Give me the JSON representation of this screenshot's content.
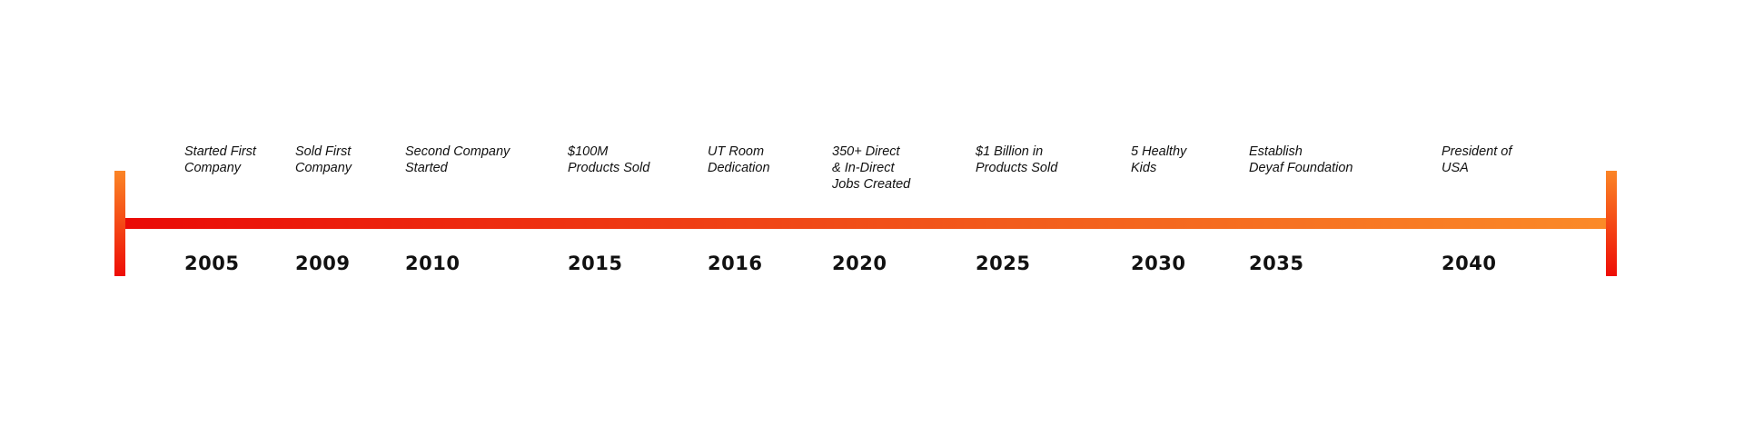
{
  "timeline": {
    "events": [
      {
        "year": "2005",
        "description": "Started First\nCompany"
      },
      {
        "year": "2009",
        "description": "Sold First\nCompany"
      },
      {
        "year": "2010",
        "description": "Second Company\nStarted"
      },
      {
        "year": "2015",
        "description": "$100M\nProducts Sold"
      },
      {
        "year": "2016",
        "description": "UT Room\nDedication"
      },
      {
        "year": "2020",
        "description": "350+ Direct\n& In-Direct\nJobs Created"
      },
      {
        "year": "2025",
        "description": "$1 Billion in\nProducts Sold"
      },
      {
        "year": "2030",
        "description": "5 Healthy\nKids"
      },
      {
        "year": "2035",
        "description": "Establish\nDeyaf Foundation"
      },
      {
        "year": "2040",
        "description": "President of\nUSA"
      }
    ],
    "colors": {
      "start": "#ea0a07",
      "end": "#fb8a28"
    }
  }
}
